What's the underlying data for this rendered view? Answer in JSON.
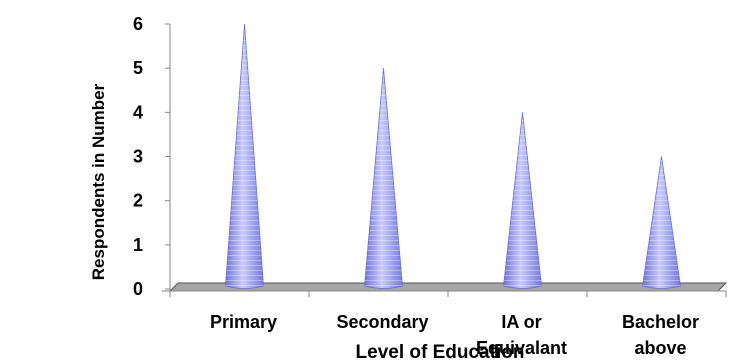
{
  "chart_data": {
    "type": "bar",
    "categories": [
      "Primary",
      "Secondary",
      "IA or Equivalant",
      "Bachelor above"
    ],
    "category_lines": [
      [
        "Primary"
      ],
      [
        "Secondary"
      ],
      [
        "IA or",
        "Equivalant"
      ],
      [
        "Bachelor",
        "above"
      ]
    ],
    "values": [
      6,
      5,
      4,
      3
    ],
    "xlabel": "Level of Education",
    "ylabel": "Respondents in Number",
    "ylim": [
      0,
      6
    ],
    "yticks": [
      "0",
      "1",
      "2",
      "3",
      "4",
      "5",
      "6"
    ],
    "bar_shape": "cone",
    "bar_color": "#9a9ef0",
    "floor_color": "#a6a6a6",
    "grid": false,
    "legend": "none"
  }
}
